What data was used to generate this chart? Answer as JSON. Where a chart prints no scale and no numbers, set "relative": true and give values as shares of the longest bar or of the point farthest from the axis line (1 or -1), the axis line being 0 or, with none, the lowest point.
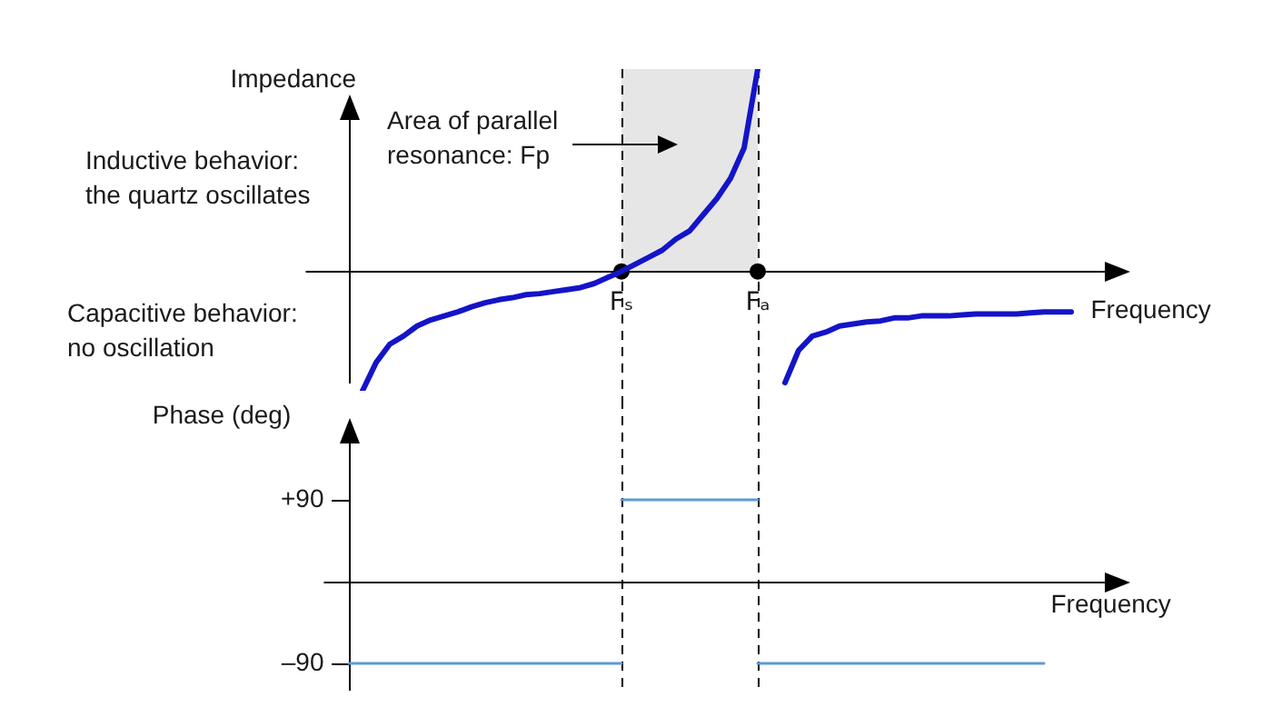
{
  "chart_data": [
    {
      "type": "line",
      "xlabel": "Frequency",
      "ylabel": "Impedance",
      "relative": true,
      "marker": "none",
      "legend": false,
      "grid": false,
      "categories": [
        null,
        null,
        null,
        null,
        null,
        null,
        null,
        null,
        null,
        null,
        null,
        null,
        null,
        null,
        null,
        null,
        null,
        null,
        null,
        null,
        "Fₛ",
        null,
        null,
        null,
        null,
        null,
        null,
        null,
        null,
        null,
        "Fₐ",
        null,
        null,
        null,
        null,
        null,
        null,
        null,
        null,
        null,
        null,
        null,
        null,
        null,
        null,
        null,
        null,
        null,
        null,
        null,
        null,
        null,
        null,
        null,
        null,
        null
      ],
      "series": [
        {
          "color": "#1414c8",
          "values": [
            null,
            -0.59,
            -0.45,
            -0.36,
            -0.32,
            -0.27,
            -0.24,
            -0.22,
            -0.2,
            -0.175,
            -0.155,
            -0.14,
            -0.13,
            -0.115,
            -0.11,
            -0.1,
            -0.09,
            -0.08,
            -0.06,
            -0.03,
            0,
            0.035,
            0.07,
            0.105,
            0.16,
            0.2,
            0.28,
            0.36,
            0.46,
            0.61,
            1,
            null,
            null,
            null,
            null,
            null,
            null,
            null,
            null,
            null,
            null,
            null,
            null,
            null,
            null,
            null,
            null,
            null,
            null,
            null,
            null,
            null,
            null,
            null,
            null,
            null
          ]
        },
        {
          "color": "#1414c8",
          "values": [
            null,
            null,
            null,
            null,
            null,
            null,
            null,
            null,
            null,
            null,
            null,
            null,
            null,
            null,
            null,
            null,
            null,
            null,
            null,
            null,
            null,
            null,
            null,
            null,
            null,
            null,
            null,
            null,
            null,
            null,
            null,
            null,
            -0.55,
            -0.39,
            -0.32,
            -0.3,
            -0.27,
            -0.26,
            -0.25,
            -0.245,
            -0.23,
            -0.23,
            -0.22,
            -0.22,
            -0.22,
            -0.215,
            -0.21,
            -0.21,
            -0.21,
            -0.21,
            -0.205,
            -0.2,
            -0.2,
            -0.2,
            null,
            null
          ]
        },
        {
          "type": "scatter",
          "marker": "circle",
          "color": "#000000",
          "values": [
            null,
            null,
            null,
            null,
            null,
            null,
            null,
            null,
            null,
            null,
            null,
            null,
            null,
            null,
            null,
            null,
            null,
            null,
            null,
            null,
            0,
            null,
            null,
            null,
            null,
            null,
            null,
            null,
            null,
            null,
            0,
            null,
            null,
            null,
            null,
            null,
            null,
            null,
            null,
            null,
            null,
            null,
            null,
            null,
            null,
            null,
            null,
            null,
            null,
            null,
            null,
            null,
            null,
            null,
            null,
            null
          ]
        }
      ],
      "bands": [
        {
          "axis": "x",
          "from": "Fₛ",
          "to": "Fₐ",
          "label": "Area of parallel resonance: Fp",
          "color": "#e6e6e6"
        }
      ],
      "ref_lines": [
        {
          "axis": "x",
          "value": "Fₛ",
          "color": "#000000",
          "line_style": "dashed"
        },
        {
          "axis": "x",
          "value": "Fₐ",
          "color": "#000000",
          "line_style": "dashed"
        }
      ],
      "annotations": [
        "Inductive behavior: the quartz oscillates",
        "Capacitive behavior: no oscillation"
      ]
    },
    {
      "type": "line",
      "xlabel": "Frequency",
      "ylabel": "Phase (deg)",
      "ylim": [
        -120,
        160
      ],
      "yticks": [
        {
          "value": 90,
          "label": "+90"
        },
        {
          "value": -90,
          "label": "–90"
        }
      ],
      "tick_labels": "y",
      "marker": "none",
      "legend": false,
      "grid": false,
      "categories": [
        null,
        null,
        null,
        null,
        null,
        null,
        null,
        null,
        null,
        null,
        null,
        null,
        null,
        null,
        null,
        null,
        null,
        null,
        null,
        null,
        "Fₛ",
        null,
        null,
        null,
        null,
        null,
        null,
        null,
        null,
        null,
        "Fₐ",
        null,
        null,
        null,
        null,
        null,
        null,
        null,
        null,
        null,
        null,
        null,
        null,
        null,
        null,
        null,
        null,
        null,
        null,
        null,
        null,
        null,
        null,
        null,
        null,
        null
      ],
      "series": [
        {
          "color": "#5b9bd5",
          "values": [
            -90,
            -90,
            -90,
            -90,
            -90,
            -90,
            -90,
            -90,
            -90,
            -90,
            -90,
            -90,
            -90,
            -90,
            -90,
            -90,
            -90,
            -90,
            -90,
            -90,
            -90,
            null,
            null,
            null,
            null,
            null,
            null,
            null,
            null,
            null,
            null,
            null,
            null,
            null,
            null,
            null,
            null,
            null,
            null,
            null,
            null,
            null,
            null,
            null,
            null,
            null,
            null,
            null,
            null,
            null,
            null,
            null,
            null,
            null,
            null,
            null
          ]
        },
        {
          "color": "#5b9bd5",
          "values": [
            null,
            null,
            null,
            null,
            null,
            null,
            null,
            null,
            null,
            null,
            null,
            null,
            null,
            null,
            null,
            null,
            null,
            null,
            null,
            null,
            90,
            90,
            90,
            90,
            90,
            90,
            90,
            90,
            90,
            90,
            90,
            null,
            null,
            null,
            null,
            null,
            null,
            null,
            null,
            null,
            null,
            null,
            null,
            null,
            null,
            null,
            null,
            null,
            null,
            null,
            null,
            null,
            null,
            null,
            null,
            null
          ]
        },
        {
          "color": "#5b9bd5",
          "values": [
            null,
            null,
            null,
            null,
            null,
            null,
            null,
            null,
            null,
            null,
            null,
            null,
            null,
            null,
            null,
            null,
            null,
            null,
            null,
            null,
            null,
            null,
            null,
            null,
            null,
            null,
            null,
            null,
            null,
            null,
            -90,
            -90,
            -90,
            -90,
            -90,
            -90,
            -90,
            -90,
            -90,
            -90,
            -90,
            -90,
            -90,
            -90,
            -90,
            -90,
            -90,
            -90,
            -90,
            -90,
            -90,
            -90,
            null,
            null,
            null,
            null
          ]
        }
      ],
      "ref_lines": [
        {
          "axis": "x",
          "value": "Fₛ",
          "color": "#000000",
          "line_style": "dashed"
        },
        {
          "axis": "x",
          "value": "Fₐ",
          "color": "#000000",
          "line_style": "dashed"
        }
      ]
    }
  ]
}
